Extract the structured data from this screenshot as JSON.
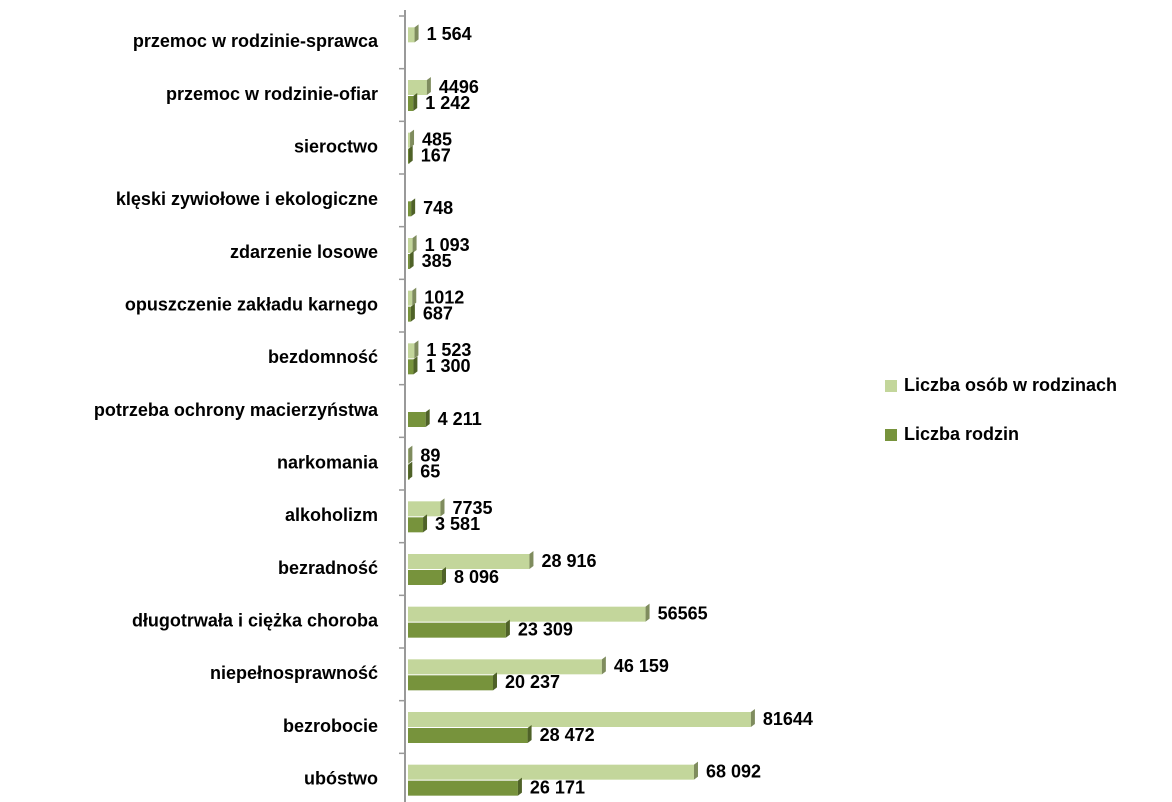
{
  "chart_data": {
    "type": "bar",
    "orientation": "horizontal",
    "categories": [
      "przemoc w rodzinie-sprawca",
      "przemoc w rodzinie-ofiar",
      "sieroctwo",
      "klęski zywiołowe i ekologiczne",
      "zdarzenie losowe",
      "opuszczenie zakładu karnego",
      "bezdomność",
      "potrzeba ochrony macierzyństwa",
      "narkomania",
      "alkoholizm",
      "bezradność",
      "długotrwała i ciężka choroba",
      "niepełnosprawność",
      "bezrobocie",
      "ubóstwo"
    ],
    "series": [
      {
        "name": "Liczba osób w rodzinach",
        "color": "#c3d69b",
        "values": [
          1564,
          4496,
          485,
          null,
          1093,
          1012,
          1523,
          null,
          89,
          7735,
          28916,
          56565,
          46159,
          81644,
          68092
        ],
        "value_labels": [
          "1 564",
          "4496",
          "485",
          null,
          "1 093",
          "1012",
          "1 523",
          null,
          "89",
          "7735",
          "28 916",
          "56565",
          "46 159",
          "81644",
          "68 092"
        ]
      },
      {
        "name": "Liczba rodzin",
        "color": "#77933c",
        "values": [
          null,
          1242,
          167,
          748,
          385,
          687,
          1300,
          4211,
          65,
          3581,
          8096,
          23309,
          20237,
          28472,
          26171
        ],
        "value_labels": [
          null,
          "1 242",
          "167",
          "748",
          "385",
          "687",
          "1 300",
          "4 211",
          "65",
          "3 581",
          "8 096",
          "23 309",
          "20 237",
          "28 472",
          "26 171"
        ]
      }
    ],
    "xlim": [
      0,
      90000
    ],
    "legend": "right"
  }
}
